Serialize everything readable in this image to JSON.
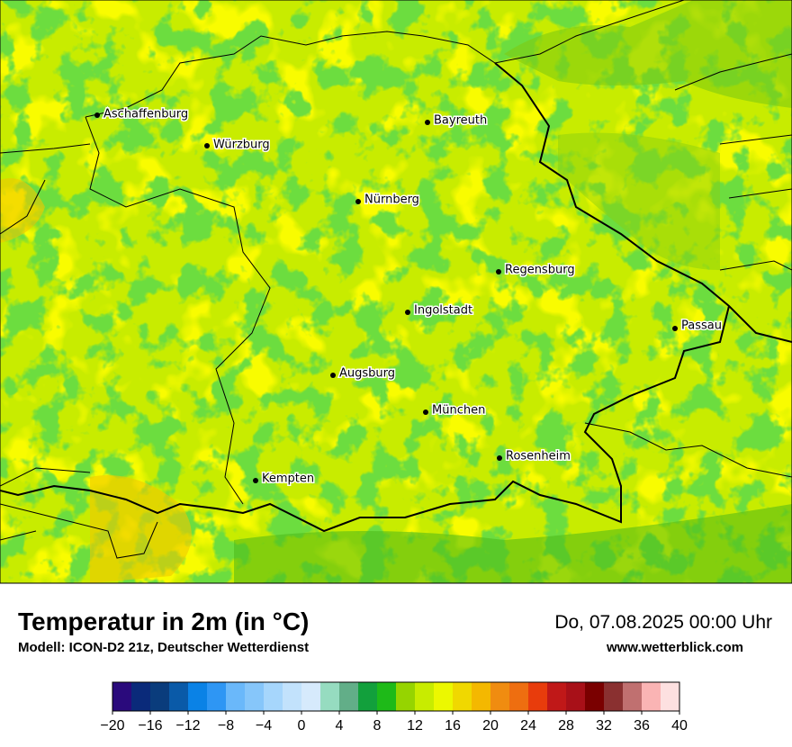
{
  "title": "Temperatur in 2m (in °C)",
  "subtitle": "Modell: ICON-D2 21z, Deutscher Wetterdienst",
  "datetime": "Do, 07.08.2025 00:00 Uhr",
  "website": "www.wetterblick.com",
  "cities": [
    "Aschaffenburg",
    "Würzburg",
    "Bayreuth",
    "Nürnberg",
    "Regensburg",
    "Ingolstadt",
    "Passau",
    "Augsburg",
    "München",
    "Rosenheim",
    "Kempten"
  ],
  "legend": {
    "range": [
      -20,
      40
    ],
    "colors": [
      "#2a0a7c",
      "#0a2a7a",
      "#0a3c7c",
      "#0a5aa8",
      "#0a82e6",
      "#2e96f4",
      "#6ab8fa",
      "#86c6fa",
      "#a6d6fc",
      "#c2e2fc",
      "#d6eafc",
      "#96dcc0",
      "#62ae88",
      "#12a03c",
      "#1eba18",
      "#96d400",
      "#c8ec00",
      "#ecf800",
      "#f0d800",
      "#f4b800",
      "#f08c10",
      "#ee6e10",
      "#e83c0c",
      "#c01818",
      "#a81018",
      "#7a0000",
      "#8a3030",
      "#c07070",
      "#fab4b4",
      "#fde0e0"
    ],
    "ticks": [
      {
        "value": -20,
        "label": "−20"
      },
      {
        "value": -16,
        "label": "−16"
      },
      {
        "value": -12,
        "label": "−12"
      },
      {
        "value": -8,
        "label": "−8"
      },
      {
        "value": -4,
        "label": "−4"
      },
      0,
      4,
      8,
      12,
      16,
      20,
      24,
      28,
      32,
      36,
      40
    ]
  }
}
